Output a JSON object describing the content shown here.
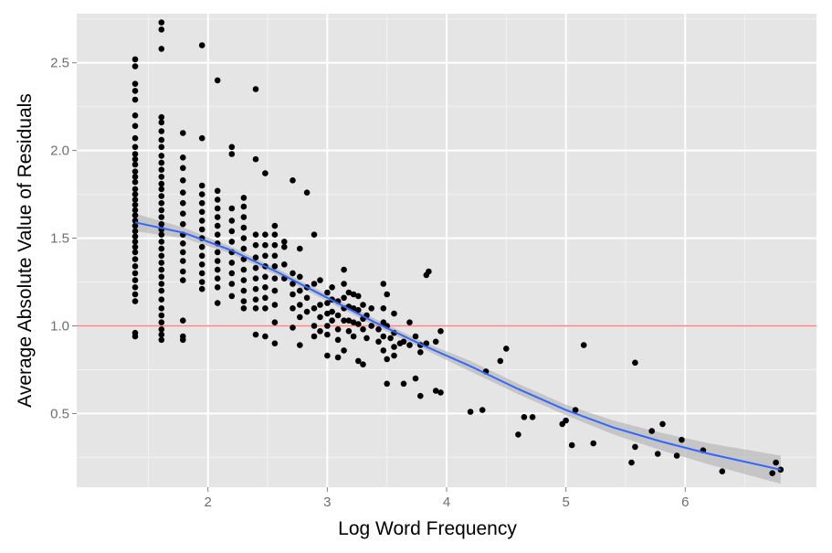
{
  "chart_data": {
    "type": "scatter",
    "title": "",
    "xlabel": "Log Word Frequency",
    "ylabel": "Average Absolute Value of Residuals",
    "xlim": [
      0.9,
      7.1
    ],
    "ylim": [
      0.08,
      2.78
    ],
    "x_ticks": [
      2,
      3,
      4,
      5,
      6
    ],
    "x_tick_labels": [
      "2",
      "3",
      "4",
      "5",
      "6"
    ],
    "y_ticks": [
      0.5,
      1.0,
      1.5,
      2.0,
      2.5
    ],
    "y_tick_labels": [
      "0.5",
      "1.0",
      "1.5",
      "2.0",
      "2.5"
    ],
    "grid": true,
    "panel_color": "#e5e5e5",
    "grid_color": "#ffffff",
    "point_color": "#000000",
    "reference_line": {
      "y": 1.0,
      "color": "#ff8080"
    },
    "smooth": {
      "color": "#3366ff",
      "band_color": "#b3b3b3",
      "x": [
        1.39,
        1.8,
        2.2,
        2.6,
        3.0,
        3.4,
        3.8,
        4.2,
        4.6,
        5.0,
        5.4,
        5.8,
        6.2,
        6.8
      ],
      "y": [
        1.59,
        1.53,
        1.43,
        1.3,
        1.16,
        1.02,
        0.89,
        0.77,
        0.64,
        0.52,
        0.42,
        0.34,
        0.27,
        0.18
      ],
      "lower": [
        1.54,
        1.5,
        1.41,
        1.28,
        1.14,
        1.0,
        0.87,
        0.74,
        0.61,
        0.49,
        0.38,
        0.29,
        0.21,
        0.1
      ],
      "upper": [
        1.64,
        1.56,
        1.45,
        1.32,
        1.18,
        1.04,
        0.91,
        0.8,
        0.67,
        0.55,
        0.46,
        0.39,
        0.33,
        0.26
      ]
    },
    "points": [
      [
        1.39,
        2.52
      ],
      [
        1.39,
        2.48
      ],
      [
        1.39,
        2.38
      ],
      [
        1.39,
        2.34
      ],
      [
        1.39,
        2.29
      ],
      [
        1.39,
        2.2
      ],
      [
        1.39,
        2.14
      ],
      [
        1.39,
        2.07
      ],
      [
        1.39,
        2.02
      ],
      [
        1.39,
        1.98
      ],
      [
        1.39,
        1.95
      ],
      [
        1.39,
        1.92
      ],
      [
        1.39,
        1.88
      ],
      [
        1.39,
        1.85
      ],
      [
        1.39,
        1.82
      ],
      [
        1.39,
        1.78
      ],
      [
        1.39,
        1.75
      ],
      [
        1.39,
        1.72
      ],
      [
        1.39,
        1.69
      ],
      [
        1.39,
        1.66
      ],
      [
        1.39,
        1.63
      ],
      [
        1.39,
        1.6
      ],
      [
        1.39,
        1.57
      ],
      [
        1.39,
        1.54
      ],
      [
        1.39,
        1.51
      ],
      [
        1.39,
        1.48
      ],
      [
        1.39,
        1.45
      ],
      [
        1.39,
        1.42
      ],
      [
        1.39,
        1.38
      ],
      [
        1.39,
        1.34
      ],
      [
        1.39,
        1.3
      ],
      [
        1.39,
        1.26
      ],
      [
        1.39,
        1.22
      ],
      [
        1.39,
        1.18
      ],
      [
        1.39,
        1.14
      ],
      [
        1.39,
        0.96
      ],
      [
        1.39,
        0.94
      ],
      [
        1.61,
        2.73
      ],
      [
        1.61,
        2.69
      ],
      [
        1.61,
        2.58
      ],
      [
        1.61,
        2.19
      ],
      [
        1.61,
        2.16
      ],
      [
        1.61,
        2.11
      ],
      [
        1.61,
        2.06
      ],
      [
        1.61,
        2.02
      ],
      [
        1.61,
        1.97
      ],
      [
        1.61,
        1.93
      ],
      [
        1.61,
        1.89
      ],
      [
        1.61,
        1.85
      ],
      [
        1.61,
        1.81
      ],
      [
        1.61,
        1.78
      ],
      [
        1.61,
        1.74
      ],
      [
        1.61,
        1.7
      ],
      [
        1.61,
        1.66
      ],
      [
        1.61,
        1.62
      ],
      [
        1.61,
        1.58
      ],
      [
        1.61,
        1.55
      ],
      [
        1.61,
        1.52
      ],
      [
        1.61,
        1.48
      ],
      [
        1.61,
        1.44
      ],
      [
        1.61,
        1.4
      ],
      [
        1.61,
        1.36
      ],
      [
        1.61,
        1.32
      ],
      [
        1.61,
        1.28
      ],
      [
        1.61,
        1.24
      ],
      [
        1.61,
        1.2
      ],
      [
        1.61,
        1.15
      ],
      [
        1.61,
        1.1
      ],
      [
        1.61,
        1.06
      ],
      [
        1.61,
        1.02
      ],
      [
        1.61,
        0.98
      ],
      [
        1.61,
        0.95
      ],
      [
        1.61,
        0.92
      ],
      [
        1.79,
        2.1
      ],
      [
        1.79,
        1.96
      ],
      [
        1.79,
        1.9
      ],
      [
        1.79,
        1.83
      ],
      [
        1.79,
        1.76
      ],
      [
        1.79,
        1.7
      ],
      [
        1.79,
        1.64
      ],
      [
        1.79,
        1.58
      ],
      [
        1.79,
        1.52
      ],
      [
        1.79,
        1.47
      ],
      [
        1.79,
        1.42
      ],
      [
        1.79,
        1.37
      ],
      [
        1.79,
        1.31
      ],
      [
        1.79,
        1.26
      ],
      [
        1.79,
        1.03
      ],
      [
        1.79,
        0.94
      ],
      [
        1.79,
        0.92
      ],
      [
        1.95,
        2.6
      ],
      [
        1.95,
        2.07
      ],
      [
        1.95,
        1.8
      ],
      [
        1.95,
        1.75
      ],
      [
        1.95,
        1.7
      ],
      [
        1.95,
        1.65
      ],
      [
        1.95,
        1.6
      ],
      [
        1.95,
        1.55
      ],
      [
        1.95,
        1.5
      ],
      [
        1.95,
        1.45
      ],
      [
        1.95,
        1.4
      ],
      [
        1.95,
        1.35
      ],
      [
        1.95,
        1.3
      ],
      [
        1.95,
        1.25
      ],
      [
        1.95,
        1.21
      ],
      [
        2.08,
        2.4
      ],
      [
        2.08,
        1.77
      ],
      [
        2.08,
        1.72
      ],
      [
        2.08,
        1.67
      ],
      [
        2.08,
        1.62
      ],
      [
        2.08,
        1.57
      ],
      [
        2.08,
        1.52
      ],
      [
        2.08,
        1.47
      ],
      [
        2.08,
        1.42
      ],
      [
        2.08,
        1.37
      ],
      [
        2.08,
        1.32
      ],
      [
        2.08,
        1.27
      ],
      [
        2.08,
        1.22
      ],
      [
        2.08,
        1.13
      ],
      [
        2.2,
        2.02
      ],
      [
        2.2,
        1.98
      ],
      [
        2.2,
        1.67
      ],
      [
        2.2,
        1.6
      ],
      [
        2.2,
        1.54
      ],
      [
        2.2,
        1.48
      ],
      [
        2.2,
        1.42
      ],
      [
        2.2,
        1.36
      ],
      [
        2.2,
        1.3
      ],
      [
        2.2,
        1.24
      ],
      [
        2.2,
        1.17
      ],
      [
        2.3,
        1.73
      ],
      [
        2.3,
        1.68
      ],
      [
        2.3,
        1.62
      ],
      [
        2.3,
        1.56
      ],
      [
        2.3,
        1.5
      ],
      [
        2.3,
        1.44
      ],
      [
        2.3,
        1.38
      ],
      [
        2.3,
        1.32
      ],
      [
        2.3,
        1.26
      ],
      [
        2.3,
        1.2
      ],
      [
        2.3,
        1.14
      ],
      [
        2.3,
        1.1
      ],
      [
        2.4,
        2.35
      ],
      [
        2.4,
        1.95
      ],
      [
        2.4,
        1.52
      ],
      [
        2.4,
        1.46
      ],
      [
        2.4,
        1.39
      ],
      [
        2.4,
        1.33
      ],
      [
        2.4,
        1.27
      ],
      [
        2.4,
        1.21
      ],
      [
        2.4,
        1.15
      ],
      [
        2.4,
        1.1
      ],
      [
        2.4,
        0.95
      ],
      [
        2.48,
        1.87
      ],
      [
        2.48,
        1.52
      ],
      [
        2.48,
        1.46
      ],
      [
        2.48,
        1.4
      ],
      [
        2.48,
        1.34
      ],
      [
        2.48,
        1.28
      ],
      [
        2.48,
        1.22
      ],
      [
        2.48,
        1.16
      ],
      [
        2.48,
        1.1
      ],
      [
        2.48,
        0.94
      ],
      [
        2.56,
        1.57
      ],
      [
        2.56,
        1.52
      ],
      [
        2.56,
        1.46
      ],
      [
        2.56,
        1.4
      ],
      [
        2.56,
        1.34
      ],
      [
        2.56,
        1.27
      ],
      [
        2.56,
        1.2
      ],
      [
        2.56,
        1.12
      ],
      [
        2.56,
        1.02
      ],
      [
        2.56,
        0.9
      ],
      [
        2.64,
        1.48
      ],
      [
        2.64,
        1.45
      ],
      [
        2.64,
        1.35
      ],
      [
        2.64,
        1.27
      ],
      [
        2.71,
        1.83
      ],
      [
        2.71,
        1.3
      ],
      [
        2.71,
        1.24
      ],
      [
        2.71,
        1.18
      ],
      [
        2.71,
        1.1
      ],
      [
        2.71,
        0.99
      ],
      [
        2.77,
        1.44
      ],
      [
        2.77,
        1.28
      ],
      [
        2.77,
        1.2
      ],
      [
        2.77,
        1.12
      ],
      [
        2.77,
        1.05
      ],
      [
        2.77,
        0.89
      ],
      [
        2.83,
        1.76
      ],
      [
        2.83,
        1.22
      ],
      [
        2.83,
        1.16
      ],
      [
        2.83,
        1.08
      ],
      [
        2.89,
        1.52
      ],
      [
        2.89,
        1.24
      ],
      [
        2.89,
        1.1
      ],
      [
        2.89,
        1.0
      ],
      [
        2.89,
        0.94
      ],
      [
        2.94,
        1.26
      ],
      [
        2.94,
        1.12
      ],
      [
        2.94,
        1.05
      ],
      [
        2.94,
        0.97
      ],
      [
        3.0,
        1.19
      ],
      [
        3.0,
        1.13
      ],
      [
        3.0,
        1.07
      ],
      [
        3.0,
        1.0
      ],
      [
        3.0,
        0.95
      ],
      [
        3.0,
        0.83
      ],
      [
        3.04,
        1.22
      ],
      [
        3.04,
        1.15
      ],
      [
        3.04,
        1.08
      ],
      [
        3.04,
        1.03
      ],
      [
        3.09,
        1.14
      ],
      [
        3.09,
        1.06
      ],
      [
        3.09,
        0.98
      ],
      [
        3.09,
        0.92
      ],
      [
        3.09,
        0.82
      ],
      [
        3.14,
        1.32
      ],
      [
        3.14,
        1.24
      ],
      [
        3.14,
        1.16
      ],
      [
        3.14,
        1.1
      ],
      [
        3.14,
        1.03
      ],
      [
        3.14,
        0.86
      ],
      [
        3.18,
        1.19
      ],
      [
        3.18,
        1.11
      ],
      [
        3.18,
        1.03
      ],
      [
        3.18,
        0.97
      ],
      [
        3.22,
        1.18
      ],
      [
        3.22,
        1.1
      ],
      [
        3.22,
        1.02
      ],
      [
        3.22,
        0.94
      ],
      [
        3.26,
        1.17
      ],
      [
        3.26,
        1.09
      ],
      [
        3.26,
        1.01
      ],
      [
        3.26,
        0.8
      ],
      [
        3.3,
        1.12
      ],
      [
        3.3,
        1.04
      ],
      [
        3.3,
        0.98
      ],
      [
        3.3,
        0.78
      ],
      [
        3.33,
        1.06
      ],
      [
        3.33,
        0.93
      ],
      [
        3.37,
        1.1
      ],
      [
        3.37,
        1.0
      ],
      [
        3.43,
        0.98
      ],
      [
        3.43,
        0.91
      ],
      [
        3.47,
        1.24
      ],
      [
        3.47,
        1.1
      ],
      [
        3.47,
        1.02
      ],
      [
        3.47,
        0.94
      ],
      [
        3.47,
        0.86
      ],
      [
        3.5,
        1.18
      ],
      [
        3.5,
        1.0
      ],
      [
        3.5,
        0.81
      ],
      [
        3.5,
        0.67
      ],
      [
        3.53,
        0.93
      ],
      [
        3.56,
        1.07
      ],
      [
        3.56,
        0.96
      ],
      [
        3.56,
        0.88
      ],
      [
        3.56,
        0.83
      ],
      [
        3.61,
        0.9
      ],
      [
        3.64,
        0.91
      ],
      [
        3.64,
        0.67
      ],
      [
        3.69,
        1.02
      ],
      [
        3.69,
        0.89
      ],
      [
        3.74,
        0.94
      ],
      [
        3.74,
        0.7
      ],
      [
        3.78,
        0.89
      ],
      [
        3.78,
        0.85
      ],
      [
        3.78,
        0.6
      ],
      [
        3.83,
        1.29
      ],
      [
        3.83,
        0.9
      ],
      [
        3.85,
        1.31
      ],
      [
        3.91,
        0.91
      ],
      [
        3.91,
        0.63
      ],
      [
        3.95,
        0.97
      ],
      [
        3.95,
        0.62
      ],
      [
        4.2,
        0.51
      ],
      [
        4.3,
        0.52
      ],
      [
        4.33,
        0.74
      ],
      [
        4.45,
        0.8
      ],
      [
        4.5,
        0.87
      ],
      [
        4.6,
        0.38
      ],
      [
        4.65,
        0.48
      ],
      [
        4.72,
        0.48
      ],
      [
        4.97,
        0.44
      ],
      [
        5.0,
        0.46
      ],
      [
        5.05,
        0.32
      ],
      [
        5.08,
        0.52
      ],
      [
        5.15,
        0.89
      ],
      [
        5.23,
        0.33
      ],
      [
        5.55,
        0.22
      ],
      [
        5.58,
        0.79
      ],
      [
        5.58,
        0.31
      ],
      [
        5.72,
        0.4
      ],
      [
        5.77,
        0.27
      ],
      [
        5.81,
        0.44
      ],
      [
        5.93,
        0.26
      ],
      [
        5.97,
        0.35
      ],
      [
        6.15,
        0.29
      ],
      [
        6.31,
        0.17
      ],
      [
        6.73,
        0.16
      ],
      [
        6.76,
        0.22
      ],
      [
        6.8,
        0.18
      ]
    ]
  }
}
